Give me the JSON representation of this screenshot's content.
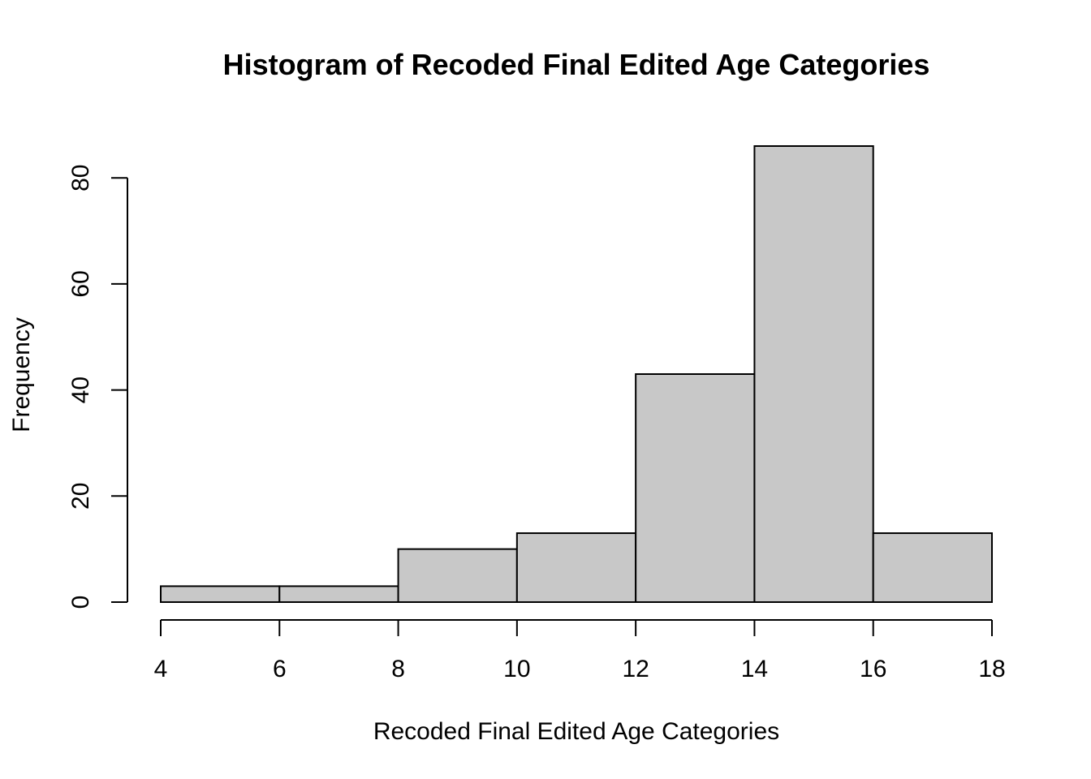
{
  "chart_data": {
    "type": "bar",
    "title": "Histogram of Recoded Final Edited Age Categories",
    "xlabel": "Recoded Final Edited Age Categories",
    "ylabel": "Frequency",
    "bins": [
      {
        "start": 4,
        "end": 6,
        "count": 3
      },
      {
        "start": 6,
        "end": 8,
        "count": 3
      },
      {
        "start": 8,
        "end": 10,
        "count": 10
      },
      {
        "start": 10,
        "end": 12,
        "count": 13
      },
      {
        "start": 12,
        "end": 14,
        "count": 43
      },
      {
        "start": 14,
        "end": 16,
        "count": 86
      },
      {
        "start": 16,
        "end": 18,
        "count": 13
      }
    ],
    "x_ticks": [
      4,
      6,
      8,
      10,
      12,
      14,
      16,
      18
    ],
    "y_ticks": [
      0,
      20,
      40,
      60,
      80
    ],
    "xlim": [
      4,
      18
    ],
    "ylim": [
      0,
      86
    ],
    "bar_fill": "#c8c8c8",
    "bar_stroke": "#000000",
    "grid": false,
    "legend": "none"
  }
}
